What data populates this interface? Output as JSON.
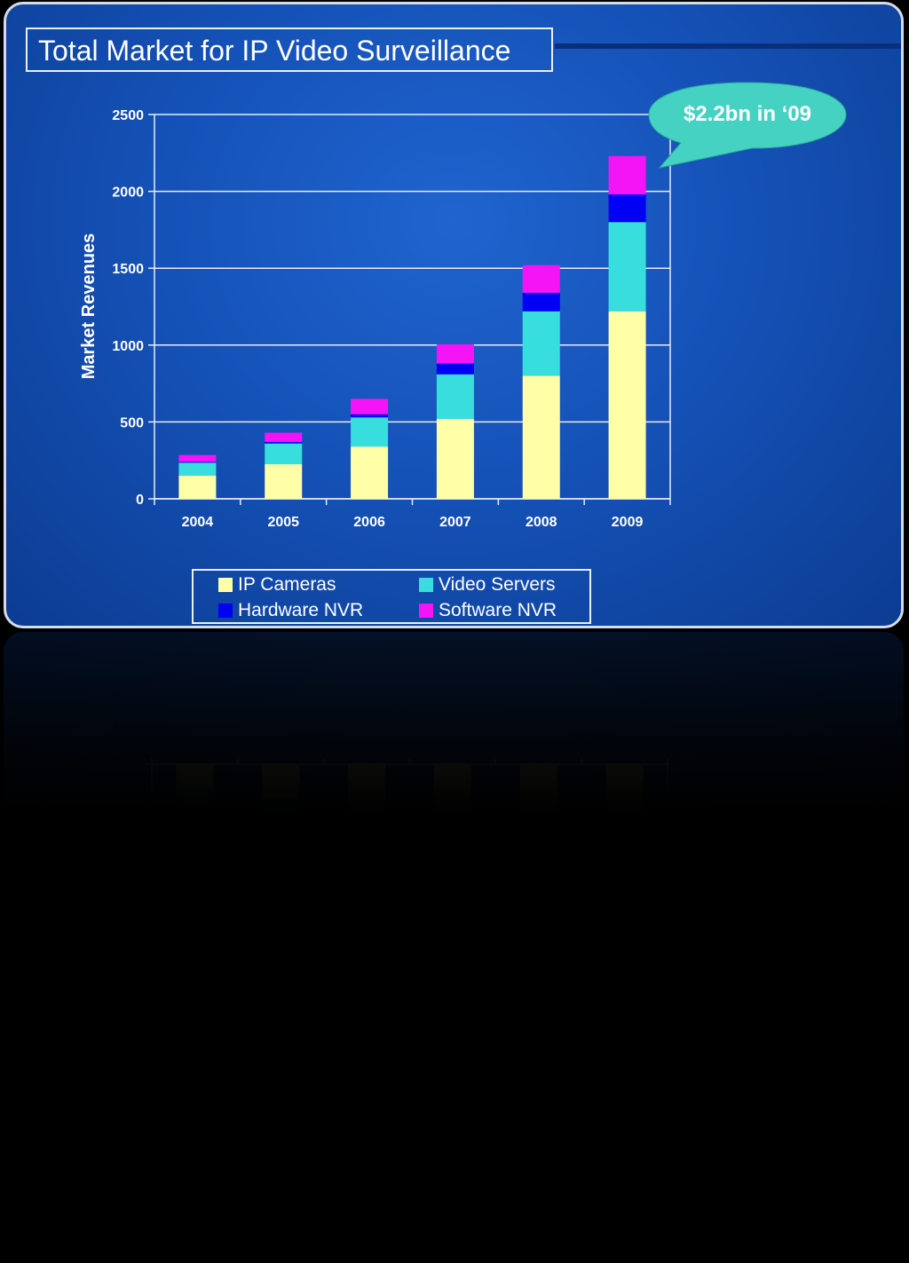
{
  "slide_title": "Total Market for IP Video Surveillance",
  "callout": "$2.2bn in ‘09",
  "colors": {
    "background": "#1552b8",
    "ip_cameras": "#ffffa8",
    "video_servers": "#38dede",
    "hardware_nvr": "#0000f5",
    "software_nvr": "#f514f5",
    "callout_fill": "#46d2c2"
  },
  "chart_data": {
    "type": "bar",
    "stacked": true,
    "categories": [
      "2004",
      "2005",
      "2006",
      "2007",
      "2008",
      "2009"
    ],
    "series": [
      {
        "name": "IP Cameras",
        "values": [
          150,
          225,
          340,
          520,
          800,
          1220
        ]
      },
      {
        "name": "Video Servers",
        "values": [
          85,
          135,
          190,
          290,
          420,
          580
        ]
      },
      {
        "name": "Hardware NVR",
        "values": [
          5,
          10,
          20,
          70,
          120,
          180
        ]
      },
      {
        "name": "Software NVR",
        "values": [
          45,
          60,
          100,
          125,
          180,
          250
        ]
      }
    ],
    "ylabel": "Market Revenues",
    "xlabel": "",
    "ylim": [
      0,
      2500
    ],
    "yticks": [
      0,
      500,
      1000,
      1500,
      2000,
      2500
    ],
    "grid": true,
    "legend_position": "bottom"
  }
}
